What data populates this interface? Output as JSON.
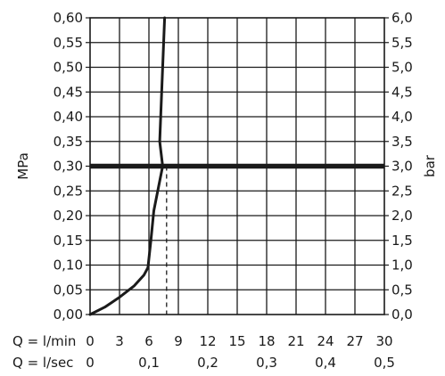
{
  "chart_data": {
    "type": "line",
    "left_axis": {
      "label": "MPa",
      "range": [
        0,
        0.6
      ],
      "ticks": [
        "0,00",
        "0,05",
        "0,10",
        "0,15",
        "0,20",
        "0,25",
        "0,30",
        "0,35",
        "0,40",
        "0,45",
        "0,50",
        "0,55",
        "0,60"
      ]
    },
    "right_axis": {
      "label": "bar",
      "range": [
        0,
        6
      ],
      "ticks": [
        "0,0",
        "0,5",
        "1,0",
        "1,5",
        "2,0",
        "2,5",
        "3,0",
        "3,5",
        "4,0",
        "4,5",
        "5,0",
        "5,5",
        "6,0"
      ]
    },
    "x_axis_lmin": {
      "label": "Q = l/min",
      "range": [
        0,
        30
      ],
      "ticks": [
        "0",
        "3",
        "6",
        "9",
        "12",
        "15",
        "18",
        "21",
        "24",
        "27",
        "30"
      ]
    },
    "x_axis_lsec": {
      "label": "Q = l/sec",
      "range": [
        0,
        0.5
      ],
      "ticks": [
        {
          "value": 0,
          "text": "0"
        },
        {
          "value": 0.1,
          "text": "0,1"
        },
        {
          "value": 0.2,
          "text": "0,2"
        },
        {
          "value": 0.3,
          "text": "0,3"
        },
        {
          "value": 0.4,
          "text": "0,4"
        },
        {
          "value": 0.5,
          "text": "0,5"
        }
      ]
    },
    "grid": true,
    "series": [
      {
        "x": [
          0,
          1.5,
          3,
          4.5,
          5.5,
          5.9,
          6.2,
          6.5,
          7.0,
          7.4,
          7.1,
          7.2,
          7.4,
          7.6
        ],
        "y": [
          0,
          0.015,
          0.035,
          0.058,
          0.08,
          0.095,
          0.15,
          0.21,
          0.26,
          0.3,
          0.35,
          0.4,
          0.5,
          0.6
        ]
      }
    ],
    "reference_line_y": 0.3,
    "reference_line_x": 7.8
  }
}
